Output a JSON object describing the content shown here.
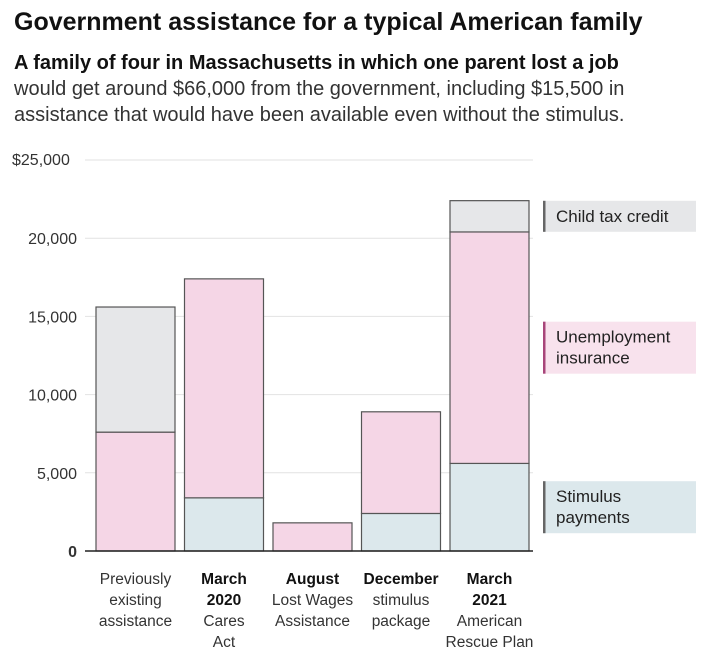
{
  "title": "Government assistance for a typical American family",
  "subtitle_bold": "A family of four in Massachusetts in which one parent lost a job",
  "subtitle_rest": "would get around $66,000 from the government, including $15,500 in assistance that would have been available even without the stimulus.",
  "colors": {
    "stimulus": "#dce8ec",
    "unemployment": "#f5d6e6",
    "child_tax": "#e6e7e9",
    "previous": "#e6e7e9",
    "stroke": "#555555",
    "unemployment_accent": "#a8457a",
    "grid": "#e2e2e2"
  },
  "chart_data": {
    "type": "bar",
    "stacked": true,
    "ylim": [
      0,
      25000
    ],
    "yticks": [
      {
        "value": 25000,
        "label": "$25,000"
      },
      {
        "value": 20000,
        "label": "20,000"
      },
      {
        "value": 15000,
        "label": "15,000"
      },
      {
        "value": 10000,
        "label": "10,000"
      },
      {
        "value": 5000,
        "label": "5,000"
      },
      {
        "value": 0,
        "label": "0",
        "bold": true
      }
    ],
    "categories": [
      {
        "lines": [
          "Previously",
          "existing",
          "assistance"
        ],
        "bold_lines": 0
      },
      {
        "lines": [
          "March",
          "2020",
          "Cares",
          "Act"
        ],
        "bold_lines": 2
      },
      {
        "lines": [
          "August",
          "Lost Wages",
          "Assistance"
        ],
        "bold_lines": 1
      },
      {
        "lines": [
          "December",
          "stimulus",
          "package"
        ],
        "bold_lines": 1
      },
      {
        "lines": [
          "March",
          "2021",
          "American",
          "Rescue Plan"
        ],
        "bold_lines": 2
      }
    ],
    "series": [
      {
        "key": "stimulus",
        "values": [
          0,
          3400,
          0,
          2400,
          5600
        ]
      },
      {
        "key": "unemployment",
        "values": [
          7600,
          14000,
          1800,
          6500,
          14800
        ]
      },
      {
        "key": "child_tax",
        "values": [
          0,
          0,
          0,
          0,
          2000
        ]
      },
      {
        "key": "previous",
        "values": [
          8000,
          0,
          0,
          0,
          0
        ]
      }
    ],
    "legend": [
      {
        "key": "child_tax",
        "lines": [
          "Child tax credit"
        ]
      },
      {
        "key": "unemployment",
        "lines": [
          "Unemployment",
          "insurance"
        ]
      },
      {
        "key": "stimulus",
        "lines": [
          "Stimulus",
          "payments"
        ]
      }
    ]
  }
}
